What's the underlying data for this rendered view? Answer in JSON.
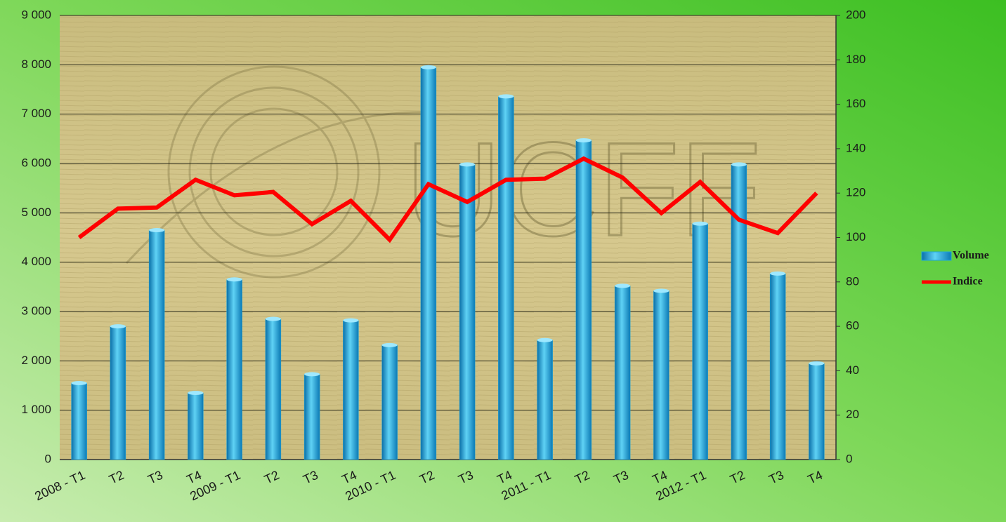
{
  "chart_data": {
    "type": "bar-line",
    "watermark": "UCFF",
    "categories": [
      "2008 - T1",
      "T2",
      "T3",
      "T4",
      "2009 - T1",
      "T2",
      "T3",
      "T4",
      "2010 - T1",
      "T2",
      "T3",
      "T4",
      "2011 - T1",
      "T2",
      "T3",
      "T4",
      "2012 - T1",
      "T2",
      "T3",
      "T4"
    ],
    "series": [
      {
        "name": "Volume",
        "type": "bar",
        "color": "#1ea6dc",
        "values": [
          1550,
          2700,
          4650,
          1350,
          3650,
          2850,
          1730,
          2820,
          2320,
          7950,
          5980,
          7360,
          2420,
          6470,
          3520,
          3420,
          4780,
          5980,
          3770,
          1950
        ]
      },
      {
        "name": "Indice",
        "type": "line",
        "axis": "y2",
        "color": "#ff0000",
        "values": [
          100,
          113,
          113.5,
          126,
          119,
          120.5,
          106,
          116.5,
          99,
          124,
          116,
          126,
          126.5,
          135.5,
          127,
          111,
          125,
          108,
          102,
          120
        ]
      }
    ],
    "ylim": [
      0,
      9000
    ],
    "yticks": [
      0,
      {
        "value": 1000,
        "label": "1 000"
      },
      {
        "value": 2000,
        "label": "2 000"
      },
      {
        "value": 3000,
        "label": "3 000"
      },
      {
        "value": 4000,
        "label": "4 000"
      },
      {
        "value": 5000,
        "label": "5 000"
      },
      {
        "value": 6000,
        "label": "6 000"
      },
      {
        "value": 7000,
        "label": "7 000"
      },
      {
        "value": 8000,
        "label": "8 000"
      },
      {
        "value": 9000,
        "label": "9 000"
      }
    ],
    "y2lim": [
      0,
      200
    ],
    "y2ticks": [
      0,
      20,
      40,
      60,
      80,
      100,
      120,
      140,
      160,
      180,
      200
    ],
    "grid": true,
    "legend": "right"
  }
}
